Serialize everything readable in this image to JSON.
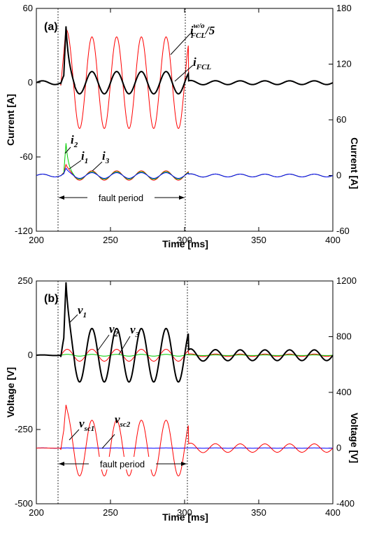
{
  "chart_data": [
    {
      "type": "line",
      "panel_label": "(a)",
      "xlabel": "Time [ms]",
      "ylabel_left": "Current [A]",
      "ylabel_right": "Current [A]",
      "xlim": [
        200,
        400
      ],
      "ylim_left": [
        -120,
        60
      ],
      "ylim_right": [
        -60,
        180
      ],
      "xticks": [
        200,
        250,
        300,
        350,
        400
      ],
      "yticks_left": [
        -120,
        -60,
        0,
        60
      ],
      "yticks_right": [
        -60,
        0,
        60,
        120,
        180
      ],
      "grid": false,
      "fault_period": {
        "label": "fault period",
        "start": 216.5,
        "end": 302.5
      },
      "series": [
        {
          "name": "i_FCL^w/o/5",
          "axis": "left",
          "color": "#ff0000",
          "shape": "sine",
          "freq_hz": 60,
          "pre_amp": 1.5,
          "fault_amp": 37,
          "post_amp": 1.5,
          "peak": 45
        },
        {
          "name": "i_FCL",
          "axis": "left",
          "color": "#000000",
          "shape": "sine",
          "freq_hz": 60,
          "pre_amp": 1.5,
          "fault_amp": 9,
          "post_amp": 1.5,
          "peak": 46
        },
        {
          "name": "i_1",
          "axis": "right",
          "color": "#ff0000",
          "offset": 0,
          "shape": "sine",
          "freq_hz": 60,
          "pre_amp": 1.5,
          "fault_amp": 5,
          "post_amp": 1.5,
          "peak": 12
        },
        {
          "name": "i_2",
          "axis": "right",
          "color": "#00cc00",
          "offset": 0,
          "shape": "sine",
          "freq_hz": 60,
          "pre_amp": 1.5,
          "fault_amp": 4,
          "post_amp": 1.5,
          "peak": 35
        },
        {
          "name": "i_3",
          "axis": "right",
          "color": "#0000ff",
          "offset": 0,
          "shape": "sine",
          "freq_hz": 60,
          "pre_amp": 1.5,
          "fault_amp": 3,
          "post_amp": 1.5,
          "peak": 8
        }
      ],
      "annotations": [
        {
          "text": "i",
          "sub": "FCL",
          "sup": "w/o",
          "suffix": "/5"
        },
        {
          "text": "i",
          "sub": "FCL"
        },
        {
          "text": "i",
          "sub": "1"
        },
        {
          "text": "i",
          "sub": "2"
        },
        {
          "text": "i",
          "sub": "3"
        }
      ]
    },
    {
      "type": "line",
      "panel_label": "(b)",
      "xlabel": "Time [ms]",
      "ylabel_left": "Voltage [V]",
      "ylabel_right": "Voltage [V]",
      "xlim": [
        200,
        400
      ],
      "ylim_left": [
        -500,
        250
      ],
      "ylim_right": [
        -400,
        1200
      ],
      "xticks": [
        200,
        250,
        300,
        350,
        400
      ],
      "yticks_left": [
        -500,
        -250,
        0,
        250
      ],
      "yticks_right": [
        -400,
        0,
        400,
        800,
        1200
      ],
      "grid": false,
      "fault_period": {
        "label": "fault period",
        "start": 216.5,
        "end": 302.5
      },
      "series": [
        {
          "name": "v_1",
          "axis": "left",
          "color": "#000000",
          "shape": "sine",
          "freq_hz": 60,
          "pre_amp": 1,
          "fault_amp": 90,
          "post_amp": 18,
          "peak": 250
        },
        {
          "name": "v_2",
          "axis": "left",
          "color": "#ff0000",
          "shape": "sine",
          "freq_hz": 60,
          "pre_amp": 1,
          "fault_amp": 20,
          "post_amp": 4,
          "peak": 20
        },
        {
          "name": "v_3",
          "axis": "left",
          "color": "#00cc00",
          "shape": "sine",
          "freq_hz": 60,
          "pre_amp": 1,
          "fault_amp": 3,
          "post_amp": 1,
          "peak": 3
        },
        {
          "name": "v_sc1",
          "axis": "right",
          "color": "#ff0000",
          "offset": 0,
          "shape": "sine",
          "freq_hz": 60,
          "pre_amp": 1,
          "fault_amp": 200,
          "post_amp": 30,
          "peak": 320
        },
        {
          "name": "v_sc2",
          "axis": "right",
          "color": "#0000ff",
          "offset": 0,
          "shape": "sine",
          "freq_hz": 60,
          "pre_amp": 1,
          "fault_amp": 1,
          "post_amp": 1,
          "peak": 1
        }
      ],
      "annotations": [
        {
          "text": "v",
          "sub": "1"
        },
        {
          "text": "v",
          "sub": "2"
        },
        {
          "text": "v",
          "sub": "3"
        },
        {
          "text": "v",
          "sub": "sc1"
        },
        {
          "text": "v",
          "sub": "sc2"
        }
      ]
    }
  ]
}
